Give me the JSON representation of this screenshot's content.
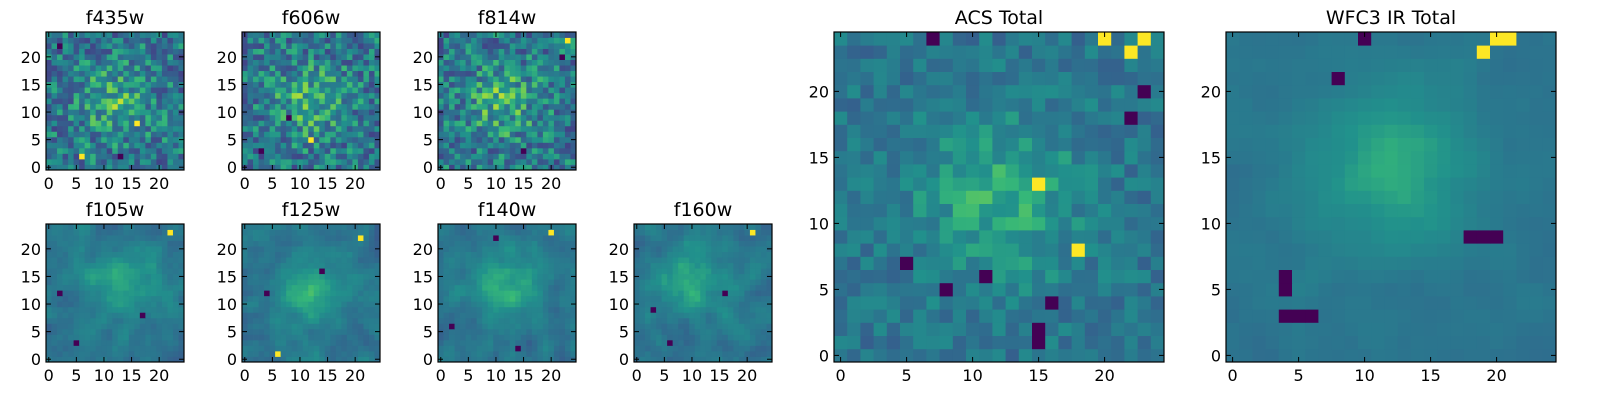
{
  "chart_data": [
    {
      "type": "heatmap",
      "title": "f435w",
      "nx": 25,
      "ny": 25,
      "colormap": "viridis",
      "xticks": [
        0,
        5,
        10,
        15,
        20
      ],
      "yticks": [
        0,
        5,
        10,
        15,
        20
      ],
      "xlim": [
        -0.5,
        24.5
      ],
      "ylim": [
        -0.5,
        24.5
      ],
      "seed": 11,
      "noise": 0.75,
      "smooth": 0,
      "bright_center": [
        12,
        12
      ],
      "hot_spots": [
        [
          6,
          2
        ],
        [
          16,
          8
        ]
      ],
      "dark_spots": [
        [
          13,
          2
        ],
        [
          2,
          22
        ]
      ]
    },
    {
      "type": "heatmap",
      "title": "f606w",
      "nx": 25,
      "ny": 25,
      "colormap": "viridis",
      "xticks": [
        0,
        5,
        10,
        15,
        20
      ],
      "yticks": [
        0,
        5,
        10,
        15,
        20
      ],
      "xlim": [
        -0.5,
        24.5
      ],
      "ylim": [
        -0.5,
        24.5
      ],
      "seed": 23,
      "noise": 0.75,
      "smooth": 0,
      "bright_center": [
        12,
        12
      ],
      "hot_spots": [
        [
          12,
          5
        ]
      ],
      "dark_spots": [
        [
          8,
          9
        ],
        [
          3,
          3
        ]
      ]
    },
    {
      "type": "heatmap",
      "title": "f814w",
      "nx": 25,
      "ny": 25,
      "colormap": "viridis",
      "xticks": [
        0,
        5,
        10,
        15,
        20
      ],
      "yticks": [
        0,
        5,
        10,
        15,
        20
      ],
      "xlim": [
        -0.5,
        24.5
      ],
      "ylim": [
        -0.5,
        24.5
      ],
      "seed": 37,
      "noise": 0.75,
      "smooth": 0,
      "bright_center": [
        11,
        12
      ],
      "hot_spots": [
        [
          23,
          23
        ]
      ],
      "dark_spots": [
        [
          15,
          3
        ],
        [
          22,
          20
        ]
      ]
    },
    {
      "type": "heatmap",
      "title": "f105w",
      "nx": 25,
      "ny": 25,
      "colormap": "viridis",
      "xticks": [
        0,
        5,
        10,
        15,
        20
      ],
      "yticks": [
        0,
        5,
        10,
        15,
        20
      ],
      "xlim": [
        -0.5,
        24.5
      ],
      "ylim": [
        -0.5,
        24.5
      ],
      "seed": 41,
      "noise": 0.55,
      "smooth": 1,
      "bright_center": [
        14,
        14
      ],
      "hot_spots": [
        [
          22,
          23
        ]
      ],
      "dark_spots": [
        [
          5,
          3
        ],
        [
          17,
          8
        ],
        [
          2,
          12
        ]
      ]
    },
    {
      "type": "heatmap",
      "title": "f125w",
      "nx": 25,
      "ny": 25,
      "colormap": "viridis",
      "xticks": [
        0,
        5,
        10,
        15,
        20
      ],
      "yticks": [
        0,
        5,
        10,
        15,
        20
      ],
      "xlim": [
        -0.5,
        24.5
      ],
      "ylim": [
        -0.5,
        24.5
      ],
      "seed": 53,
      "noise": 0.55,
      "smooth": 1,
      "bright_center": [
        12,
        12
      ],
      "hot_spots": [
        [
          21,
          22
        ],
        [
          6,
          1
        ]
      ],
      "dark_spots": [
        [
          14,
          16
        ],
        [
          4,
          12
        ]
      ]
    },
    {
      "type": "heatmap",
      "title": "f140w",
      "nx": 25,
      "ny": 25,
      "colormap": "viridis",
      "xticks": [
        0,
        5,
        10,
        15,
        20
      ],
      "yticks": [
        0,
        5,
        10,
        15,
        20
      ],
      "xlim": [
        -0.5,
        24.5
      ],
      "ylim": [
        -0.5,
        24.5
      ],
      "seed": 67,
      "noise": 0.55,
      "smooth": 1,
      "bright_center": [
        12,
        14
      ],
      "hot_spots": [
        [
          20,
          23
        ]
      ],
      "dark_spots": [
        [
          10,
          22
        ],
        [
          2,
          6
        ],
        [
          14,
          2
        ]
      ]
    },
    {
      "type": "heatmap",
      "title": "f160w",
      "nx": 25,
      "ny": 25,
      "colormap": "viridis",
      "xticks": [
        0,
        5,
        10,
        15,
        20
      ],
      "yticks": [
        0,
        5,
        10,
        15,
        20
      ],
      "xlim": [
        -0.5,
        24.5
      ],
      "ylim": [
        -0.5,
        24.5
      ],
      "seed": 79,
      "noise": 0.55,
      "smooth": 1,
      "bright_center": [
        10,
        14
      ],
      "hot_spots": [
        [
          21,
          23
        ]
      ],
      "dark_spots": [
        [
          6,
          3
        ],
        [
          16,
          12
        ],
        [
          3,
          9
        ]
      ]
    },
    {
      "type": "heatmap",
      "title": "ACS Total",
      "nx": 25,
      "ny": 25,
      "colormap": "viridis",
      "xticks": [
        0,
        5,
        10,
        15,
        20
      ],
      "yticks": [
        0,
        5,
        10,
        15,
        20
      ],
      "xlim": [
        -0.5,
        24.5
      ],
      "ylim": [
        -0.5,
        24.5
      ],
      "seed": 97,
      "noise": 0.35,
      "smooth": 0,
      "bright_center": [
        12,
        12
      ],
      "hot_spots": [
        [
          20,
          24
        ],
        [
          23,
          24
        ],
        [
          22,
          23
        ],
        [
          15,
          13
        ],
        [
          18,
          8
        ]
      ],
      "dark_spots": [
        [
          7,
          24
        ],
        [
          11,
          6
        ],
        [
          8,
          5
        ],
        [
          15,
          1
        ],
        [
          15,
          2
        ],
        [
          16,
          4
        ],
        [
          22,
          18
        ],
        [
          23,
          20
        ],
        [
          5,
          7
        ]
      ]
    },
    {
      "type": "heatmap",
      "title": "WFC3 IR Total",
      "nx": 25,
      "ny": 25,
      "colormap": "viridis",
      "xticks": [
        0,
        5,
        10,
        15,
        20
      ],
      "yticks": [
        0,
        5,
        10,
        15,
        20
      ],
      "xlim": [
        -0.5,
        24.5
      ],
      "ylim": [
        -0.5,
        24.5
      ],
      "seed": 131,
      "noise": 0.22,
      "smooth": 1,
      "bright_center": [
        12,
        14
      ],
      "hot_spots": [
        [
          20,
          24
        ],
        [
          21,
          24
        ],
        [
          19,
          23
        ]
      ],
      "dark_spots": [
        [
          4,
          3
        ],
        [
          5,
          3
        ],
        [
          6,
          3
        ],
        [
          4,
          5
        ],
        [
          4,
          6
        ],
        [
          18,
          9
        ],
        [
          19,
          9
        ],
        [
          20,
          9
        ],
        [
          10,
          24
        ],
        [
          8,
          21
        ]
      ]
    }
  ]
}
